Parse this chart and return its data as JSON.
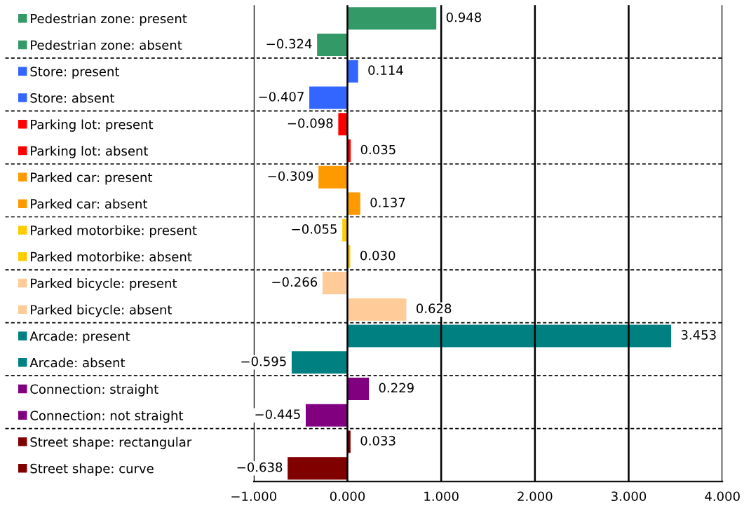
{
  "chart_data": {
    "type": "bar",
    "orientation": "horizontal",
    "categories": [
      "Pedestrian zone: present",
      "Pedestrian zone: absent",
      "Store: present",
      "Store: absent",
      "Parking lot: present",
      "Parking lot: absent",
      "Parked car: present",
      "Parked car: absent",
      "Parked motorbike: present",
      "Parked motorbike: absent",
      "Parked bicycle: present",
      "Parked bicycle: absent",
      "Arcade: present",
      "Arcade: absent",
      "Connection: straight",
      "Connection: not straight",
      "Street shape: rectangular",
      "Street shape: curve"
    ],
    "values": [
      0.948,
      -0.324,
      0.114,
      -0.407,
      -0.098,
      0.035,
      -0.309,
      0.137,
      -0.055,
      0.03,
      -0.266,
      0.628,
      3.453,
      -0.595,
      0.229,
      -0.445,
      0.033,
      -0.638
    ],
    "value_labels": [
      "0.948",
      "−0.324",
      "0.114",
      "−0.407",
      "−0.098",
      "0.035",
      "−0.309",
      "0.137",
      "−0.055",
      "0.030",
      "−0.266",
      "0.628",
      "3.453",
      "−0.595",
      "0.229",
      "−0.445",
      "0.033",
      "−0.638"
    ],
    "colors": [
      "#339966",
      "#339966",
      "#3366ff",
      "#3366ff",
      "#ff0000",
      "#ff0000",
      "#ff9900",
      "#ff9900",
      "#ffcc00",
      "#ffcc00",
      "#ffcc99",
      "#ffcc99",
      "#008080",
      "#008080",
      "#800080",
      "#800080",
      "#800000",
      "#800000"
    ],
    "xlim": [
      -1,
      4
    ],
    "xticks": [
      {
        "value": -1,
        "label": "−1.000"
      },
      {
        "value": 0,
        "label": "0.000"
      },
      {
        "value": 1,
        "label": "1.000"
      },
      {
        "value": 2,
        "label": "2.000"
      },
      {
        "value": 3,
        "label": "3.000"
      },
      {
        "value": 4,
        "label": "4.000"
      }
    ],
    "grid": "x"
  }
}
